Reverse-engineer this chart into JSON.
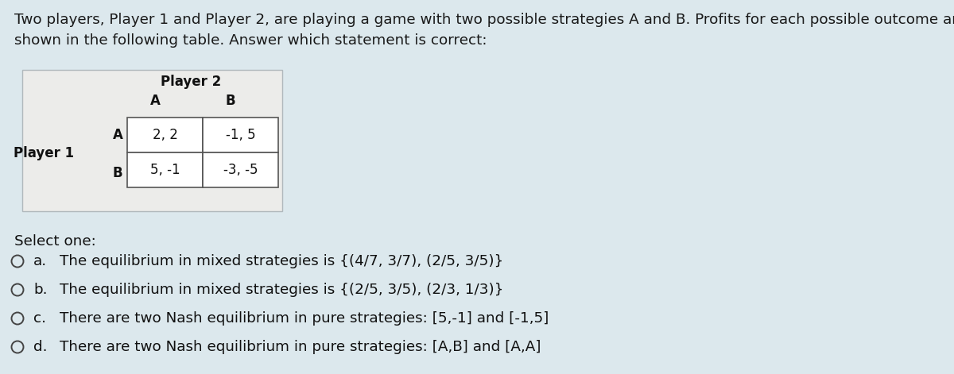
{
  "bg_color": "#dce8ed",
  "title_line1": "Two players, Player 1 and Player 2, are playing a game with two possible strategies A and B. Profits for each possible outcome are",
  "title_line2": "shown in the following table. Answer which statement is correct:",
  "title_fontsize": 13.2,
  "player2_label": "Player 2",
  "player1_label": "Player 1",
  "cell_data": [
    [
      "2, 2",
      "-1, 5"
    ],
    [
      "5, -1",
      "-3, -5"
    ]
  ],
  "select_one_text": "Select one:",
  "options": [
    {
      "letter": "a.",
      "text": "The equilibrium in mixed strategies is {(4/7, 3/7), (2/5, 3/5)}"
    },
    {
      "letter": "b.",
      "text": "The equilibrium in mixed strategies is {(2/5, 3/5), (2/3, 1/3)}"
    },
    {
      "letter": "c.",
      "text": "There are two Nash equilibrium in pure strategies: [5,-1] and [-1,5]"
    },
    {
      "letter": "d.",
      "text": "There are two Nash equilibrium in pure strategies: [A,B] and [A,A]"
    }
  ],
  "option_fontsize": 13.2,
  "select_fontsize": 13.2,
  "label_fontsize": 12,
  "cell_fontsize": 12
}
